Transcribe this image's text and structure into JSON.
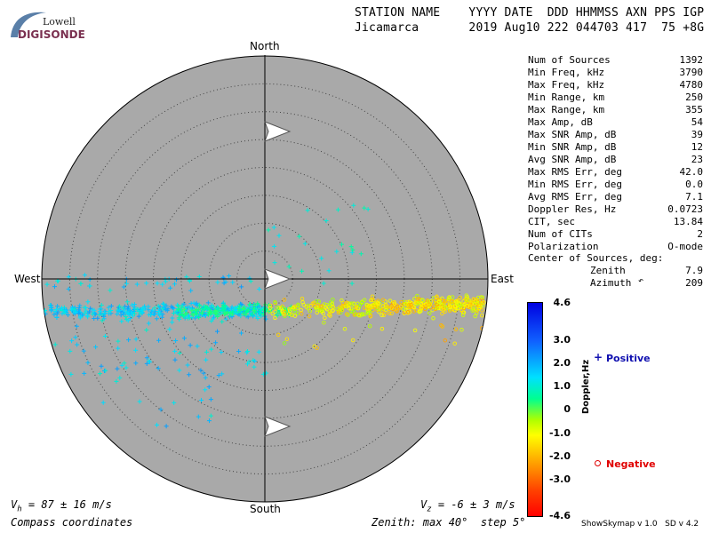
{
  "logo": {
    "line1": "Lowell",
    "line2": "DIGISONDE"
  },
  "header": {
    "row1": "STATION NAME    YYYY DATE  DDD HHMMSS AXN PPS IGP",
    "row2": "Jicamarca       2019 Aug10 222 044703 417  75 +8G"
  },
  "directions": {
    "north": "North",
    "south": "South",
    "east": "East",
    "west": "West"
  },
  "stats": [
    {
      "label": "Num of Sources",
      "value": "1392"
    },
    {
      "label": "Min Freq, kHz",
      "value": "3790"
    },
    {
      "label": "Max Freq, kHz",
      "value": "4780"
    },
    {
      "label": "Min Range, km",
      "value": "250"
    },
    {
      "label": "Max Range, km",
      "value": "355"
    },
    {
      "label": "Max Amp, dB",
      "value": "54"
    },
    {
      "label": "Max SNR Amp, dB",
      "value": "39"
    },
    {
      "label": "Min SNR Amp, dB",
      "value": "12"
    },
    {
      "label": "Avg SNR Amp, dB",
      "value": "23"
    },
    {
      "label": "Max RMS Err, deg",
      "value": "42.0"
    },
    {
      "label": "Min RMS Err, deg",
      "value": "0.0"
    },
    {
      "label": "Avg RMS Err, deg",
      "value": "7.1"
    },
    {
      "label": "Doppler Res, Hz",
      "value": "0.0723"
    },
    {
      "label": "CIT, sec",
      "value": "13.84"
    },
    {
      "label": "Num of CITs",
      "value": "2"
    },
    {
      "label": "Polarization",
      "value": "O-mode"
    }
  ],
  "center": {
    "heading": "Center of Sources, deg:",
    "zenith_label": "Zenith",
    "zenith_value": "7.9",
    "azimuth_label": "Azimuth",
    "azimuth_value": "209"
  },
  "colorbar": {
    "label": "Doppler,Hz",
    "ticks": [
      "4.6",
      "3.0",
      "2.0",
      "1.0",
      "0",
      "-1.0",
      "-2.0",
      "-3.0",
      "-4.6"
    ]
  },
  "legend": {
    "positive": "Positive",
    "negative": "Negative"
  },
  "footer": {
    "vh_prefix": "V",
    "vh_sub": "h",
    "vh_text": " = 87 ± 16 m/s",
    "vz_prefix": "V",
    "vz_sub": "z",
    "vz_text": " = -6 ± 3 m/s",
    "compass": "Compass coordinates",
    "zenith": "Zenith: max 40°  step 5°",
    "credit": "ShowSkymap v 1.0   SD v 4.2"
  },
  "colors": {
    "disk": "#a9a9a9",
    "positive": "#1010b0",
    "negative": "#e00000"
  },
  "chart_data": {
    "type": "scatter",
    "projection": "polar skymap",
    "zenith_max_deg": 40,
    "zenith_step_deg": 5,
    "colorbar_range_hz": [
      -4.6,
      4.6
    ],
    "clusters": [
      {
        "marker": "+",
        "doppler_hz_range": [
          1.0,
          2.3
        ],
        "azimuth_range_deg": [
          250,
          285
        ],
        "zenith_range_deg": [
          0,
          38
        ]
      },
      {
        "marker": "o",
        "doppler_hz_range": [
          -2.0,
          0.0
        ],
        "azimuth_range_deg": [
          92,
          110
        ],
        "zenith_range_deg": [
          0,
          36
        ]
      }
    ]
  }
}
